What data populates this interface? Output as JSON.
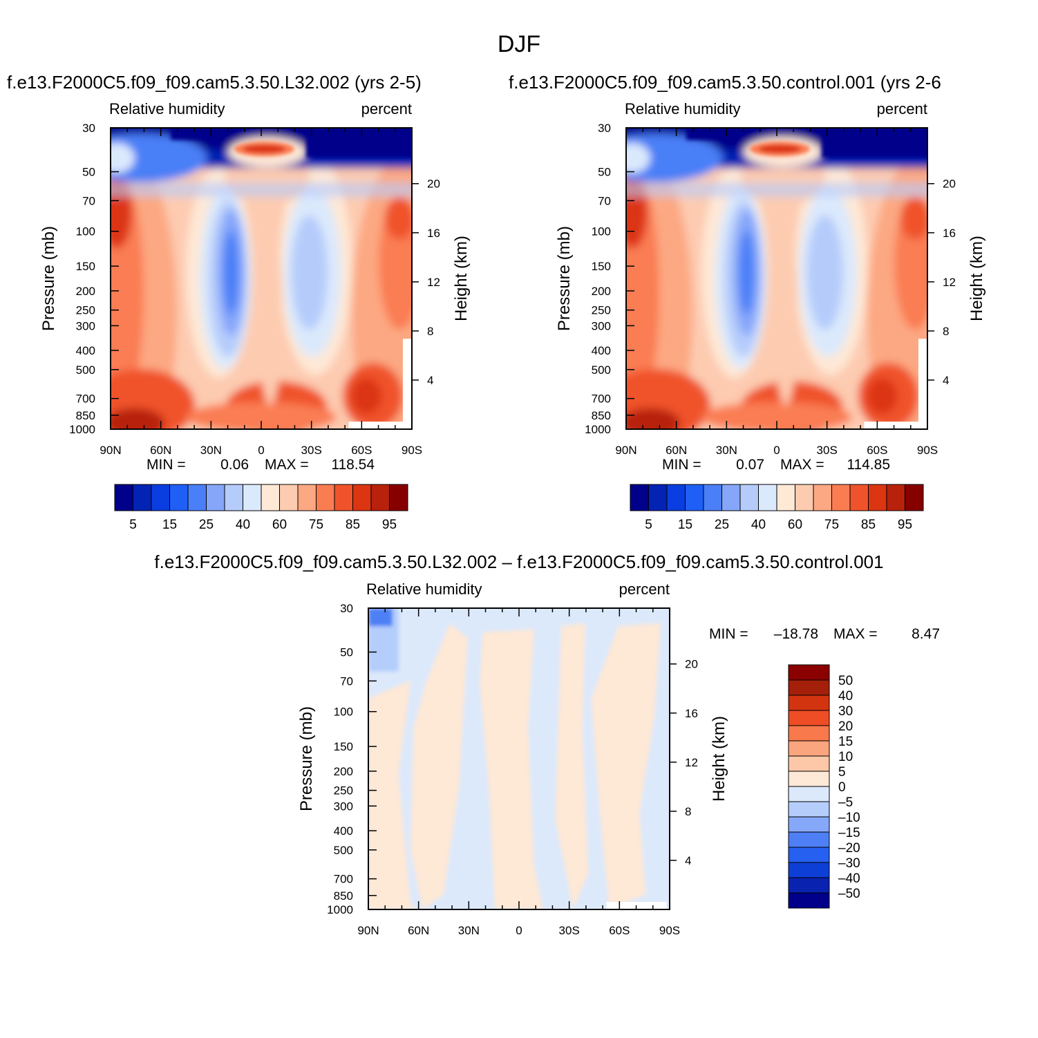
{
  "figure": {
    "title": "DJF"
  },
  "colors": {
    "abs_scale": [
      "#00008b",
      "#0323b4",
      "#0a3ee0",
      "#1f5ff5",
      "#4a7ff7",
      "#86a6fa",
      "#b5ccfb",
      "#dbe9fc",
      "#fee8d6",
      "#fdcbb0",
      "#fca882",
      "#fa7d52",
      "#f0532c",
      "#dc3512",
      "#b8210b",
      "#870000"
    ],
    "diff_scale": [
      "#00008b",
      "#0a22b0",
      "#0d3fd6",
      "#2560f0",
      "#4e7ff5",
      "#86a8f9",
      "#b4cdfb",
      "#dce9fb",
      "#fee8d6",
      "#fcc8a8",
      "#faa57e",
      "#f7794c",
      "#ee4d25",
      "#d23410",
      "#a5200a",
      "#8b0000"
    ]
  },
  "chart_data": [
    {
      "type": "heatmap",
      "title": "f.e13.F2000C5.f09_f09.cam5.3.50.L32.002 (yrs 2-5)",
      "variable": "Relative humidity",
      "units": "percent",
      "ylabel": "Pressure (mb)",
      "ylabel_right": "Height (km)",
      "x_ticks": [
        "90N",
        "60N",
        "30N",
        "0",
        "30S",
        "60S",
        "90S"
      ],
      "y_ticks": [
        "30",
        "50",
        "70",
        "100",
        "150",
        "200",
        "250",
        "300",
        "400",
        "500",
        "700",
        "850",
        "1000"
      ],
      "y_ticks_right": [
        "20",
        "16",
        "12",
        "8",
        "4"
      ],
      "ylim": [
        1000,
        30
      ],
      "stats": {
        "min_label": "MIN =",
        "min": "0.06",
        "max_label": "MAX =",
        "max": "118.54"
      },
      "colorbar_labels": [
        "5",
        "15",
        "25",
        "40",
        "60",
        "75",
        "85",
        "95"
      ]
    },
    {
      "type": "heatmap",
      "title": "f.e13.F2000C5.f09_f09.cam5.3.50.control.001 (yrs 2-6",
      "variable": "Relative humidity",
      "units": "percent",
      "ylabel": "Pressure (mb)",
      "ylabel_right": "Height (km)",
      "x_ticks": [
        "90N",
        "60N",
        "30N",
        "0",
        "30S",
        "60S",
        "90S"
      ],
      "y_ticks": [
        "30",
        "50",
        "70",
        "100",
        "150",
        "200",
        "250",
        "300",
        "400",
        "500",
        "700",
        "850",
        "1000"
      ],
      "y_ticks_right": [
        "20",
        "16",
        "12",
        "8",
        "4"
      ],
      "ylim": [
        1000,
        30
      ],
      "stats": {
        "min_label": "MIN =",
        "min": "0.07",
        "max_label": "MAX =",
        "max": "114.85"
      },
      "colorbar_labels": [
        "5",
        "15",
        "25",
        "40",
        "60",
        "75",
        "85",
        "95"
      ]
    },
    {
      "type": "heatmap",
      "title": "f.e13.F2000C5.f09_f09.cam5.3.50.L32.002 – f.e13.F2000C5.f09_f09.cam5.3.50.control.001",
      "variable": "Relative humidity",
      "units": "percent",
      "ylabel": "Pressure (mb)",
      "ylabel_right": "Height (km)",
      "x_ticks": [
        "90N",
        "60N",
        "30N",
        "0",
        "30S",
        "60S",
        "90S"
      ],
      "y_ticks": [
        "30",
        "50",
        "70",
        "100",
        "150",
        "200",
        "250",
        "300",
        "400",
        "500",
        "700",
        "850",
        "1000"
      ],
      "y_ticks_right": [
        "20",
        "16",
        "12",
        "8",
        "4"
      ],
      "ylim": [
        1000,
        30
      ],
      "stats": {
        "min_label": "MIN =",
        "min": "–18.78",
        "max_label": "MAX =",
        "max": "8.47"
      },
      "colorbar_labels": [
        "50",
        "40",
        "30",
        "20",
        "15",
        "10",
        "5",
        "0",
        "–5",
        "–10",
        "–15",
        "–20",
        "–30",
        "–40",
        "–50"
      ]
    }
  ]
}
